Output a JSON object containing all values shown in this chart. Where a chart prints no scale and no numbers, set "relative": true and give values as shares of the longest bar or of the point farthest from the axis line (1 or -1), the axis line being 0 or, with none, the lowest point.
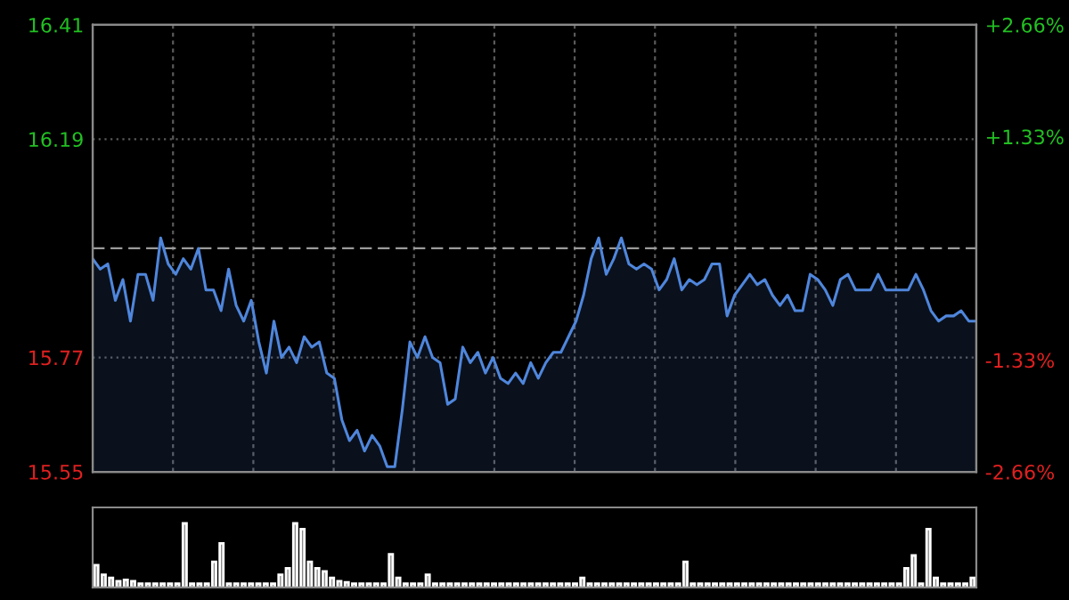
{
  "chart_data": [
    {
      "type": "area",
      "categories": [
        null,
        null,
        null,
        null,
        null,
        null,
        null,
        null,
        null,
        null,
        null,
        null,
        null,
        null,
        null,
        null,
        null,
        null,
        null,
        null,
        null,
        null,
        null,
        null,
        null,
        null,
        null,
        null,
        null,
        null,
        null,
        null,
        null,
        null,
        null,
        null,
        null,
        null,
        null,
        null,
        null,
        null,
        null,
        null,
        null,
        null,
        null,
        null,
        null,
        null,
        null,
        null,
        null,
        null,
        null,
        null,
        null,
        null,
        null,
        null,
        null,
        null,
        null,
        null,
        null,
        null,
        null,
        null,
        null,
        null,
        null,
        null,
        null,
        null,
        null,
        null,
        null,
        null,
        null,
        null,
        null,
        null,
        null,
        null,
        null,
        null,
        null,
        null,
        null,
        null,
        null,
        null,
        null,
        null,
        null,
        null,
        null,
        null,
        null,
        null,
        null,
        null,
        null,
        null,
        null,
        null,
        null,
        null,
        null,
        null,
        null,
        null,
        null,
        null,
        null,
        null,
        null,
        null
      ],
      "series": [
        {
          "color": "#4f86dc",
          "values": [
            15.96,
            15.94,
            15.95,
            15.88,
            15.92,
            15.84,
            15.93,
            15.93,
            15.88,
            16.0,
            15.95,
            15.93,
            15.96,
            15.94,
            15.98,
            15.9,
            15.9,
            15.86,
            15.94,
            15.87,
            15.84,
            15.88,
            15.8,
            15.74,
            15.84,
            15.77,
            15.79,
            15.76,
            15.81,
            15.79,
            15.8,
            15.74,
            15.73,
            15.65,
            15.61,
            15.63,
            15.59,
            15.62,
            15.6,
            15.56,
            15.56,
            15.67,
            15.8,
            15.77,
            15.81,
            15.77,
            15.76,
            15.68,
            15.69,
            15.79,
            15.76,
            15.78,
            15.74,
            15.77,
            15.73,
            15.72,
            15.74,
            15.72,
            15.76,
            15.73,
            15.76,
            15.78,
            15.78,
            15.81,
            15.84,
            15.89,
            15.96,
            16.0,
            15.93,
            15.96,
            16.0,
            15.95,
            15.94,
            15.95,
            15.94,
            15.9,
            15.92,
            15.96,
            15.9,
            15.92,
            15.91,
            15.92,
            15.95,
            15.95,
            15.85,
            15.89,
            15.91,
            15.93,
            15.91,
            15.92,
            15.89,
            15.87,
            15.89,
            15.86,
            15.86,
            15.93,
            15.92,
            15.9,
            15.87,
            15.92,
            15.93,
            15.9,
            15.9,
            15.9,
            15.93,
            15.9,
            15.9,
            15.9,
            15.9,
            15.93,
            15.9,
            15.86,
            15.84,
            15.85,
            15.85,
            15.86,
            15.84,
            15.84
          ]
        }
      ],
      "ylim": [
        15.55,
        16.41
      ],
      "yticks": [
        15.55,
        15.77,
        16.19,
        16.41
      ],
      "y2lim": [
        -2.66,
        2.66
      ],
      "y2ticks": [
        {
          "value": -2.66,
          "label": "-2.66%"
        },
        {
          "value": -1.33,
          "label": "-1.33%"
        },
        {
          "value": 1.33,
          "label": "+1.33%"
        },
        {
          "value": 2.66,
          "label": "+2.66%"
        }
      ],
      "ref_lines": [
        {
          "axis": "y",
          "value": 15.98,
          "label": null,
          "line_style": "dashed"
        }
      ],
      "grid": true,
      "tick_labels": "y"
    },
    {
      "type": "bar",
      "relative": true,
      "color": "#8a8a8a",
      "categories": [
        null,
        null,
        null,
        null,
        null,
        null,
        null,
        null,
        null,
        null,
        null,
        null,
        null,
        null,
        null,
        null,
        null,
        null,
        null,
        null,
        null,
        null,
        null,
        null,
        null,
        null,
        null,
        null,
        null,
        null,
        null,
        null,
        null,
        null,
        null,
        null,
        null,
        null,
        null,
        null,
        null,
        null,
        null,
        null,
        null,
        null,
        null,
        null,
        null,
        null,
        null,
        null,
        null,
        null,
        null,
        null,
        null,
        null,
        null,
        null,
        null,
        null,
        null,
        null,
        null,
        null,
        null,
        null,
        null,
        null,
        null,
        null,
        null,
        null,
        null,
        null,
        null,
        null,
        null,
        null,
        null,
        null,
        null,
        null,
        null,
        null,
        null,
        null,
        null,
        null,
        null,
        null,
        null,
        null,
        null,
        null,
        null,
        null,
        null,
        null,
        null,
        null,
        null,
        null,
        null,
        null,
        null,
        null,
        null,
        null,
        null,
        null,
        null,
        null,
        null,
        null,
        null,
        null,
        null,
        null
      ],
      "values": [
        0.35,
        0.2,
        0.15,
        0.1,
        0.12,
        0.1,
        0.06,
        0.06,
        0.06,
        0.06,
        0.06,
        0.06,
        1.0,
        0.06,
        0.06,
        0.06,
        0.4,
        0.69,
        0.06,
        0.06,
        0.06,
        0.06,
        0.06,
        0.06,
        0.06,
        0.2,
        0.3,
        1.0,
        0.91,
        0.4,
        0.3,
        0.25,
        0.15,
        0.1,
        0.08,
        0.06,
        0.06,
        0.06,
        0.06,
        0.06,
        0.52,
        0.15,
        0.06,
        0.06,
        0.06,
        0.2,
        0.06,
        0.06,
        0.06,
        0.06,
        0.06,
        0.06,
        0.06,
        0.06,
        0.06,
        0.06,
        0.06,
        0.06,
        0.06,
        0.06,
        0.06,
        0.06,
        0.06,
        0.06,
        0.06,
        0.06,
        0.15,
        0.06,
        0.06,
        0.06,
        0.06,
        0.06,
        0.06,
        0.06,
        0.06,
        0.06,
        0.06,
        0.06,
        0.06,
        0.06,
        0.4,
        0.06,
        0.06,
        0.06,
        0.06,
        0.06,
        0.06,
        0.06,
        0.06,
        0.06,
        0.06,
        0.06,
        0.06,
        0.06,
        0.06,
        0.06,
        0.06,
        0.06,
        0.06,
        0.06,
        0.06,
        0.06,
        0.06,
        0.06,
        0.06,
        0.06,
        0.06,
        0.06,
        0.06,
        0.06,
        0.3,
        0.5,
        0.06,
        0.91,
        0.15,
        0.06,
        0.06,
        0.06,
        0.06,
        0.15
      ],
      "tick_labels": false
    }
  ]
}
